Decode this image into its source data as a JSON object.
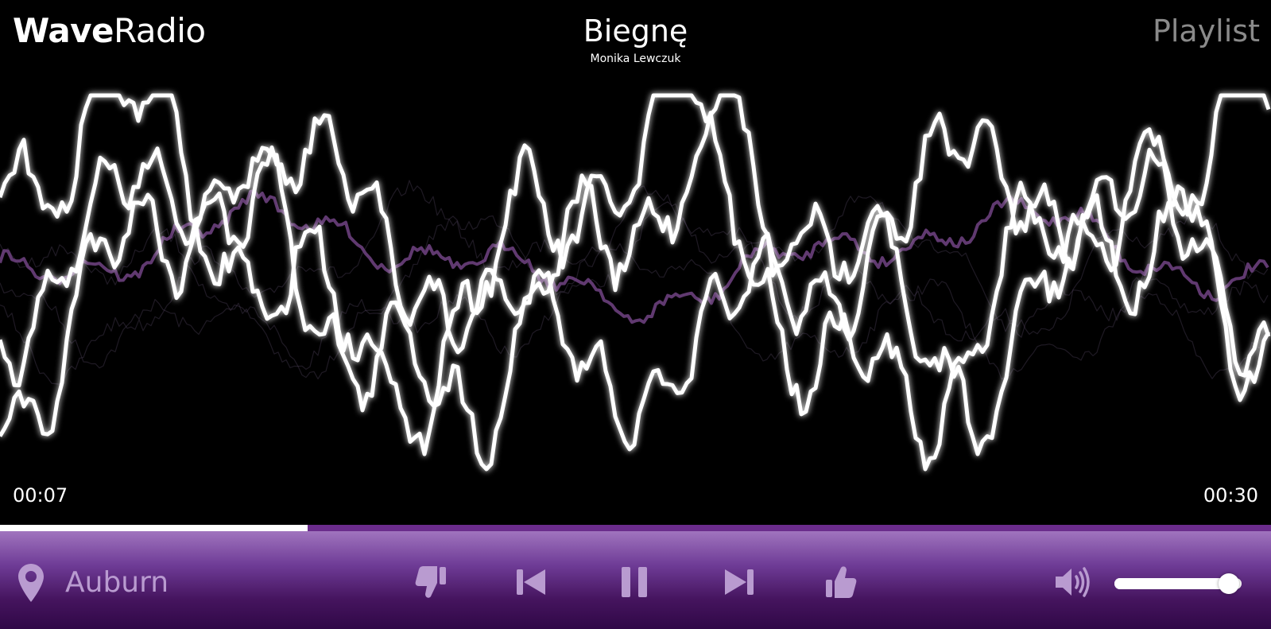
{
  "header": {
    "logo_bold": "Wave",
    "logo_regular": "Radio",
    "playlist_label": "Playlist"
  },
  "track": {
    "title": "Biegnę",
    "artist": "Monika Lewczuk"
  },
  "playback": {
    "elapsed": "00:07",
    "duration": "00:30",
    "progress": 0.242
  },
  "controls": {
    "location_icon": "map-pin-icon",
    "location": "Auburn",
    "dislike_icon": "thumbs-down-icon",
    "previous_icon": "skip-previous-icon",
    "pause_icon": "pause-icon",
    "next_icon": "skip-next-icon",
    "like_icon": "thumbs-up-icon",
    "volume_icon": "volume-up-icon",
    "volume_level": 0.9
  },
  "colors": {
    "background": "#000000",
    "accent": "#6b2c8c",
    "control_text": "#b99bd0",
    "wave_main": "#ffffff",
    "wave_secondary": "#6a3f7c"
  }
}
